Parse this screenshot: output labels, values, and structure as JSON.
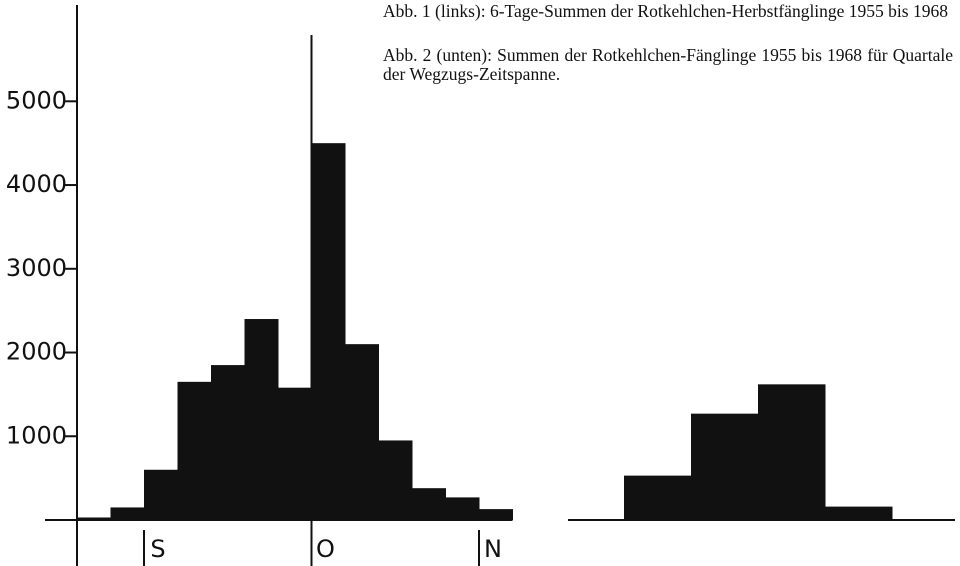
{
  "chart_data": [
    {
      "type": "bar",
      "title": "Abb. 1 (links): 6-Tage-Summen der Rotkehlchen-Herbstfänglinge 1955 bis 1968",
      "categories": [
        null,
        null,
        null,
        null,
        null,
        null,
        null,
        null,
        null,
        null,
        null,
        null,
        null
      ],
      "values": [
        30,
        150,
        600,
        1650,
        1850,
        2400,
        1580,
        4500,
        2100,
        950,
        380,
        270,
        130
      ],
      "color": "#111111",
      "ylim": [
        0,
        6150
      ],
      "yticks": [
        1000,
        2000,
        3000,
        4000,
        5000
      ],
      "month_labels": [
        "S",
        "O",
        "N"
      ]
    },
    {
      "type": "bar",
      "title": "Abb. 2 (unten): Summen der Rotkehlchen-Fänglinge 1955 bis 1968 für Quartale der Wegzugs-Zeitspanne.",
      "categories": [
        null,
        null,
        null,
        null
      ],
      "values": [
        530,
        1270,
        1620,
        160
      ],
      "color": "#111111",
      "ylim": [
        0,
        6150
      ]
    }
  ]
}
